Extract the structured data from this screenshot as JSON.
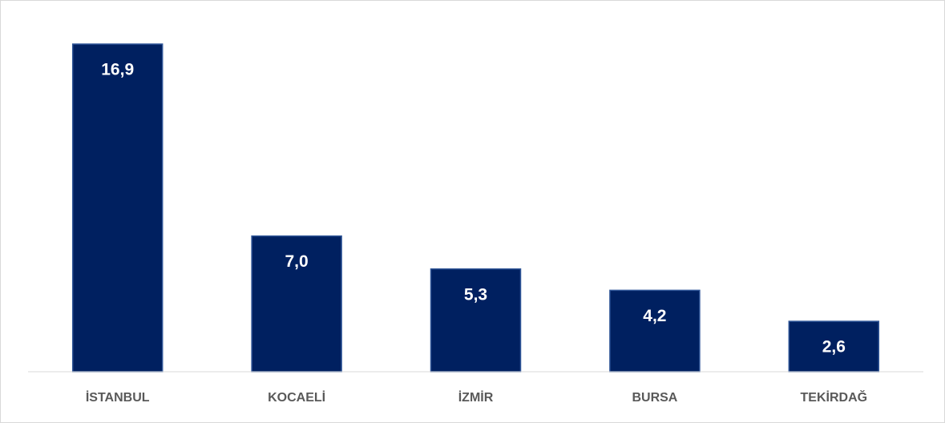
{
  "chart_data": {
    "type": "bar",
    "categories": [
      "İSTANBUL",
      "KOCAELİ",
      "İZMİR",
      "BURSA",
      "TEKİRDAĞ"
    ],
    "values": [
      16.9,
      7.0,
      5.3,
      4.2,
      2.6
    ],
    "value_labels": [
      "16,9",
      "7,0",
      "5,3",
      "4,2",
      "2,6"
    ],
    "color": "#002060"
  }
}
